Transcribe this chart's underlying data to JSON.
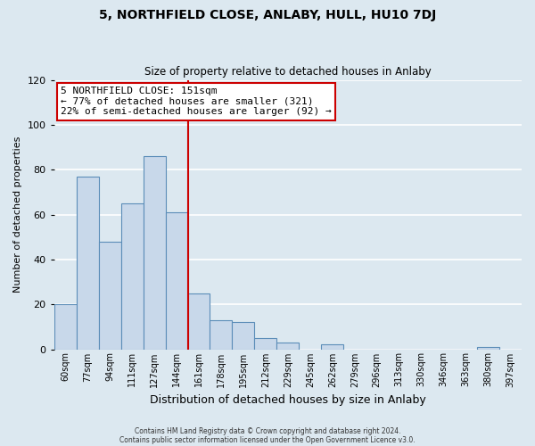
{
  "title": "5, NORTHFIELD CLOSE, ANLABY, HULL, HU10 7DJ",
  "subtitle": "Size of property relative to detached houses in Anlaby",
  "xlabel": "Distribution of detached houses by size in Anlaby",
  "ylabel": "Number of detached properties",
  "bar_labels": [
    "60sqm",
    "77sqm",
    "94sqm",
    "111sqm",
    "127sqm",
    "144sqm",
    "161sqm",
    "178sqm",
    "195sqm",
    "212sqm",
    "229sqm",
    "245sqm",
    "262sqm",
    "279sqm",
    "296sqm",
    "313sqm",
    "330sqm",
    "346sqm",
    "363sqm",
    "380sqm",
    "397sqm"
  ],
  "bar_values": [
    20,
    77,
    48,
    65,
    86,
    61,
    25,
    13,
    12,
    5,
    3,
    0,
    2,
    0,
    0,
    0,
    0,
    0,
    0,
    1,
    0
  ],
  "bar_color": "#c8d8ea",
  "bar_edge_color": "#5b8db8",
  "vline_x": 6,
  "vline_color": "#cc0000",
  "ylim": [
    0,
    120
  ],
  "yticks": [
    0,
    20,
    40,
    60,
    80,
    100,
    120
  ],
  "annotation_title": "5 NORTHFIELD CLOSE: 151sqm",
  "annotation_line1": "← 77% of detached houses are smaller (321)",
  "annotation_line2": "22% of semi-detached houses are larger (92) →",
  "annotation_box_color": "#ffffff",
  "annotation_box_edge": "#cc0000",
  "footer1": "Contains HM Land Registry data © Crown copyright and database right 2024.",
  "footer2": "Contains public sector information licensed under the Open Government Licence v3.0.",
  "background_color": "#dce8f0",
  "grid_color": "#ffffff"
}
